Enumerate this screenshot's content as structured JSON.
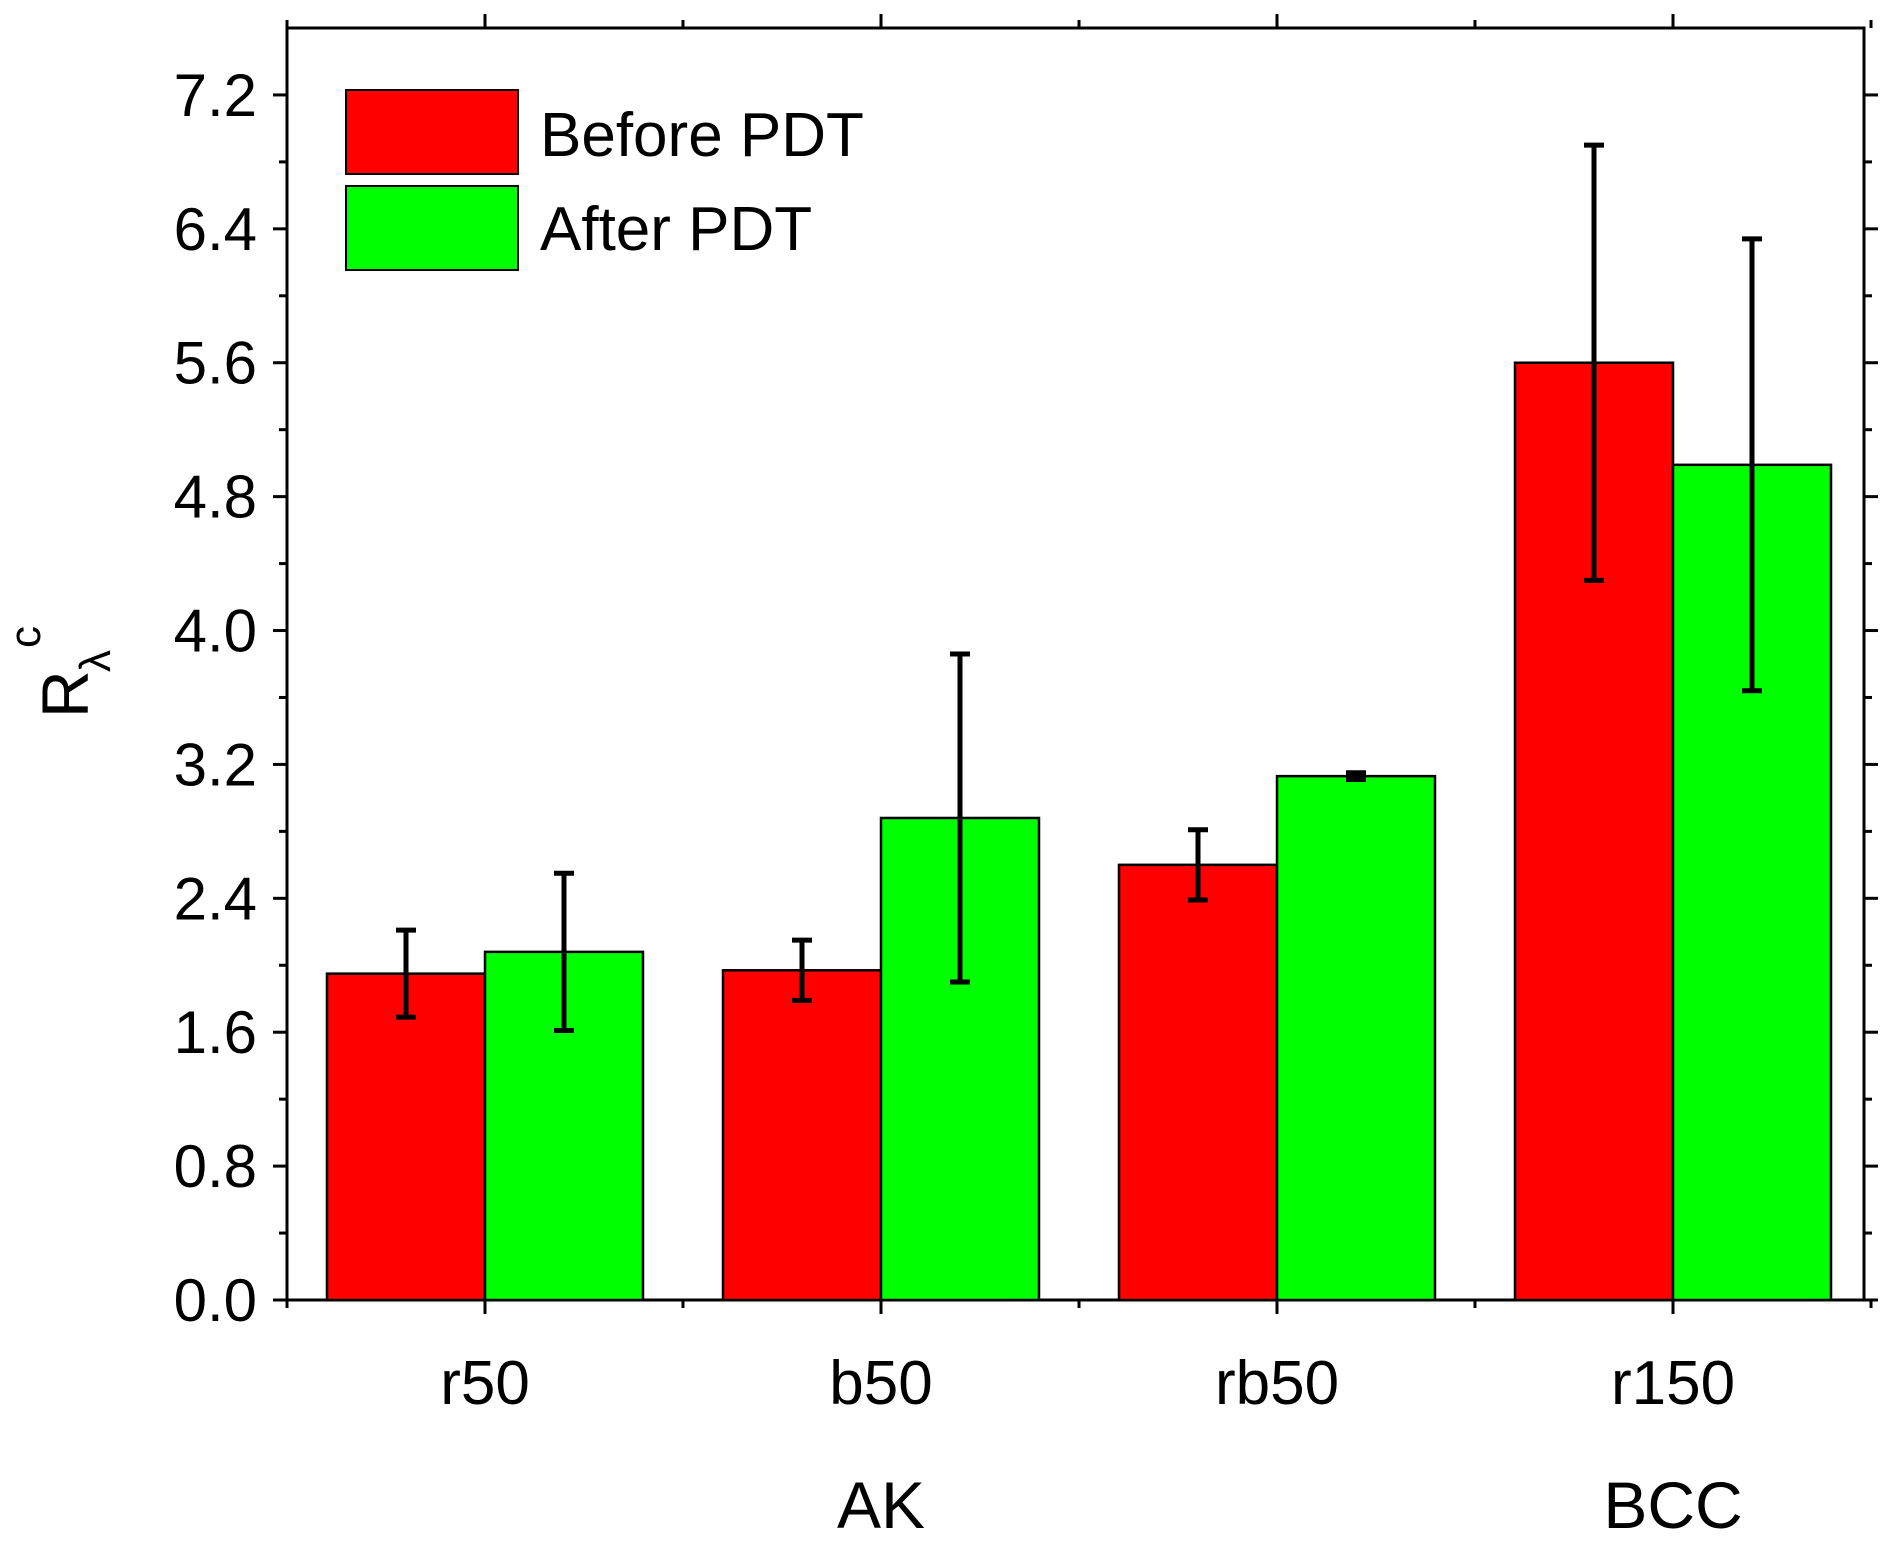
{
  "chart_data": {
    "type": "bar",
    "title": "",
    "xlabel": "",
    "ylabel": {
      "main": "R",
      "subscript": "λ",
      "superscript": "c"
    },
    "ylim": [
      0,
      7.6
    ],
    "yticks": [
      "0.0",
      "0.8",
      "1.6",
      "2.4",
      "3.2",
      "4.0",
      "4.8",
      "5.6",
      "6.4",
      "7.2"
    ],
    "categories": [
      "r50",
      "b50",
      "rb50",
      "r150"
    ],
    "groups": [
      {
        "label": "AK",
        "categories": [
          "r50",
          "b50",
          "rb50"
        ]
      },
      {
        "label": "BCC",
        "categories": [
          "r150"
        ]
      }
    ],
    "series": [
      {
        "name": "Before PDT",
        "color": "#ff0000",
        "values": [
          1.95,
          1.97,
          2.6,
          5.6
        ],
        "errors": [
          0.26,
          0.18,
          0.21,
          1.3
        ]
      },
      {
        "name": "After PDT",
        "color": "#00ff00",
        "values": [
          2.08,
          2.88,
          3.13,
          4.99
        ],
        "errors": [
          0.47,
          0.98,
          0.02,
          1.35
        ]
      }
    ],
    "legend_position": "top-left",
    "grid": false
  }
}
